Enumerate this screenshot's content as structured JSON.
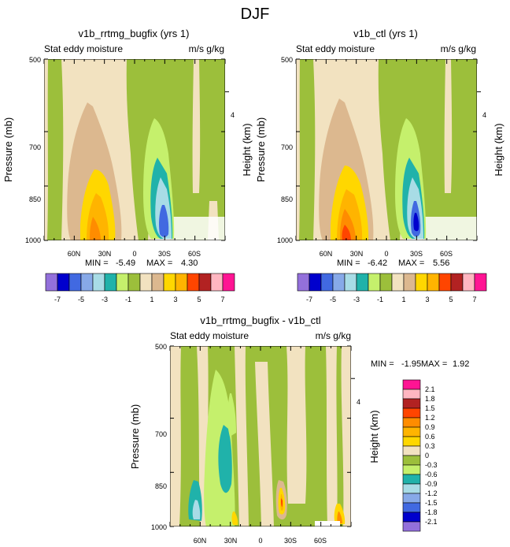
{
  "figure_title": "DJF",
  "colors": {
    "neg7": "#9370db",
    "neg6": "#0000cd",
    "neg5": "#4169e1",
    "neg4": "#87a9e8",
    "neg3": "#a8dce6",
    "neg2": "#20b2aa",
    "neg1": "#c5f06c",
    "neg0": "#9cbf3b",
    "pos0": "#f2e2c0",
    "pos1": "#dcb88f",
    "pos2": "#ffd700",
    "pos3": "#ffb400",
    "pos4": "#ff8c00",
    "pos5": "#ff4500",
    "pos6": "#b22222",
    "pos7": "#ffb6c1",
    "pos8": "#ff1493"
  },
  "chart_data": [
    {
      "type": "contour",
      "title": "v1b_rrtmg_bugfix (yrs 1)",
      "left_subtitle": "Stat eddy moisture",
      "right_subtitle": "m/s g/kg",
      "ylabel": "Pressure (mb)",
      "right_ylabel": "Height (km)",
      "y_ticks": [
        "500",
        "700",
        "850",
        "1000"
      ],
      "right_tick": "4",
      "x_ticks": [
        "60N",
        "30N",
        "0",
        "30S",
        "60S"
      ],
      "stats": {
        "min_label": "MIN =",
        "min": "-5.49",
        "max_label": "MAX =",
        "max": "4.30"
      },
      "colorbar_labels": [
        "-7",
        "-5",
        "-3",
        "-1",
        "1",
        "3",
        "5",
        "7"
      ]
    },
    {
      "type": "contour",
      "title": "v1b_ctl (yrs 1)",
      "left_subtitle": "Stat eddy moisture",
      "right_subtitle": "m/s g/kg",
      "ylabel": "Pressure (mb)",
      "right_ylabel": "Height (km)",
      "y_ticks": [
        "500",
        "700",
        "850",
        "1000"
      ],
      "right_tick": "4",
      "x_ticks": [
        "60N",
        "30N",
        "0",
        "30S",
        "60S"
      ],
      "stats": {
        "min_label": "MIN =",
        "min": "-6.42",
        "max_label": "MAX =",
        "max": "5.56"
      },
      "colorbar_labels": [
        "-7",
        "-5",
        "-3",
        "-1",
        "1",
        "3",
        "5",
        "7"
      ]
    },
    {
      "type": "contour",
      "title": "v1b_rrtmg_bugfix - v1b_ctl",
      "left_subtitle": "Stat eddy moisture",
      "right_subtitle": "m/s g/kg",
      "ylabel": "Pressure (mb)",
      "right_ylabel": "Height (km)",
      "y_ticks": [
        "500",
        "700",
        "850",
        "1000"
      ],
      "right_tick": "4",
      "x_ticks": [
        "60N",
        "30N",
        "0",
        "30S",
        "60S"
      ],
      "stats": {
        "min_label": "MIN =",
        "min": "-1.95",
        "max_label": "MAX =",
        "max": "1.92"
      },
      "colorbar_labels": [
        "2.1",
        "1.8",
        "1.5",
        "1.2",
        "0.9",
        "0.6",
        "0.3",
        "0",
        "-0.3",
        "-0.6",
        "-0.9",
        "-1.2",
        "-1.5",
        "-1.8",
        "-2.1"
      ]
    }
  ]
}
